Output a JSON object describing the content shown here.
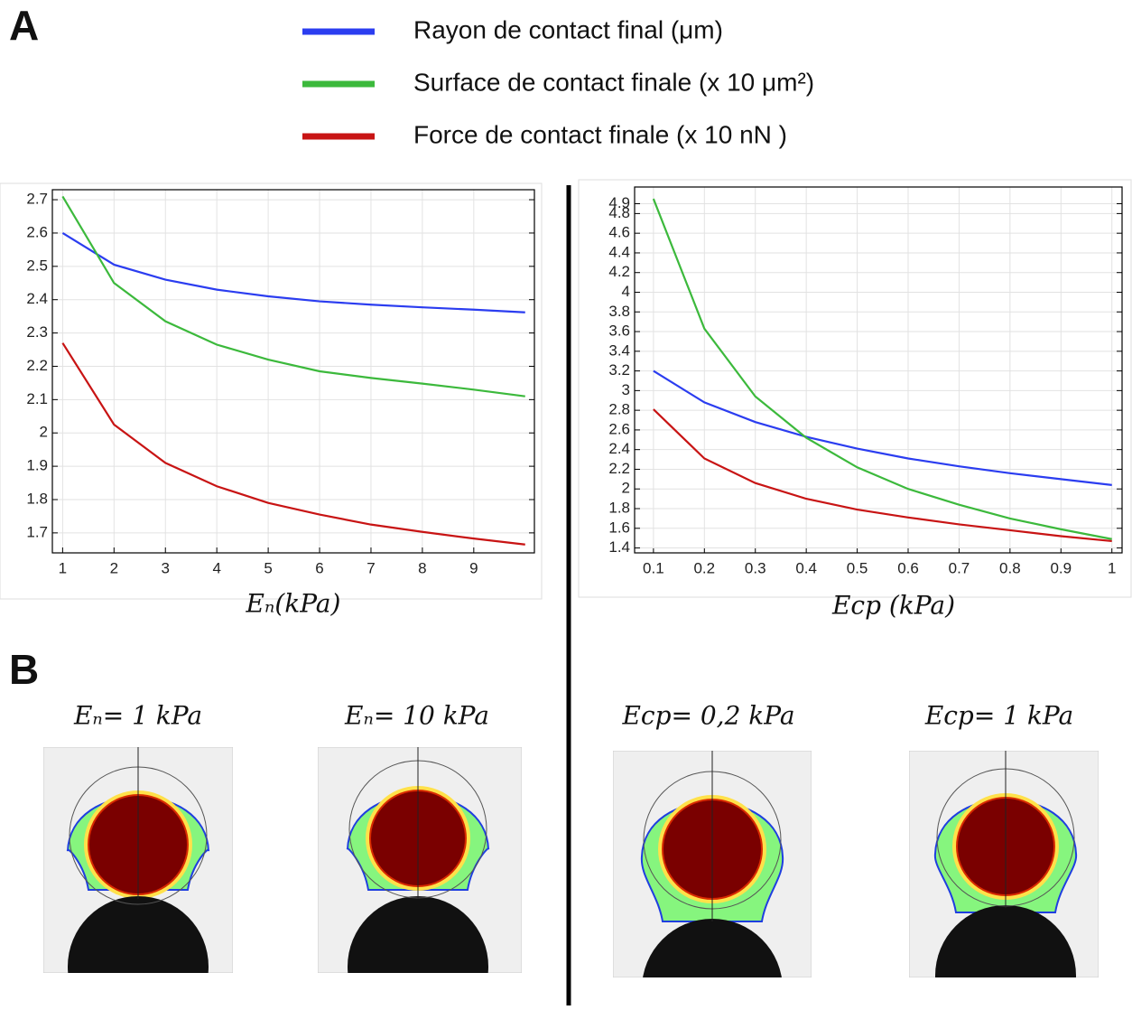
{
  "panels": [
    "A",
    "B"
  ],
  "chart_data": [
    {
      "type": "line",
      "xlabel": "Eₙ(kPa)",
      "grid": true,
      "x": [
        1,
        2,
        3,
        4,
        5,
        6,
        7,
        8,
        9,
        10
      ],
      "xlim": [
        0.8,
        10.18
      ],
      "xticks": [
        1,
        2,
        3,
        4,
        5,
        6,
        7,
        8,
        9
      ],
      "ylim": [
        1.64,
        2.73
      ],
      "yticks": [
        1.7,
        1.8,
        1.9,
        2,
        2.1,
        2.2,
        2.3,
        2.4,
        2.5,
        2.6,
        2.7
      ],
      "series": [
        {
          "name": "Rayon de contact final (μm)",
          "color": "#2b3df0",
          "values": [
            2.6,
            2.505,
            2.46,
            2.43,
            2.41,
            2.395,
            2.385,
            2.377,
            2.37,
            2.362
          ]
        },
        {
          "name": "Surface de contact  finale (x 10 μm²)",
          "color": "#3cb93c",
          "values": [
            2.71,
            2.45,
            2.335,
            2.265,
            2.22,
            2.185,
            2.165,
            2.148,
            2.13,
            2.11
          ]
        },
        {
          "name": "Force de contact finale (x 10 nN )",
          "color": "#c81414",
          "values": [
            2.27,
            2.025,
            1.91,
            1.84,
            1.79,
            1.755,
            1.725,
            1.703,
            1.683,
            1.665
          ]
        }
      ]
    },
    {
      "type": "line",
      "xlabel": "Ecp (kPa)",
      "grid": true,
      "x": [
        0.1,
        0.2,
        0.3,
        0.4,
        0.5,
        0.6,
        0.7,
        0.8,
        0.9,
        1
      ],
      "xlim": [
        0.063,
        1.02
      ],
      "xticks": [
        0.1,
        0.2,
        0.3,
        0.4,
        0.5,
        0.6,
        0.7,
        0.8,
        0.9,
        1
      ],
      "ylim": [
        1.35,
        5.07
      ],
      "yticks": [
        1.4,
        1.6,
        1.8,
        2,
        2.2,
        2.4,
        2.6,
        2.8,
        3,
        3.2,
        3.4,
        3.6,
        3.8,
        4,
        4.2,
        4.4,
        4.6,
        4.8,
        4.9
      ],
      "series": [
        {
          "color": "#2b3df0",
          "values": [
            3.2,
            2.88,
            2.68,
            2.53,
            2.41,
            2.31,
            2.23,
            2.16,
            2.1,
            2.04
          ]
        },
        {
          "color": "#3cb93c",
          "values": [
            4.95,
            3.63,
            2.94,
            2.52,
            2.22,
            2.0,
            1.84,
            1.7,
            1.59,
            1.49
          ]
        },
        {
          "color": "#c81414",
          "values": [
            2.81,
            2.31,
            2.06,
            1.9,
            1.79,
            1.71,
            1.64,
            1.58,
            1.52,
            1.47
          ]
        }
      ]
    }
  ],
  "images": [
    "Eₙ= 1 kPa",
    "Eₙ= 10 kPa",
    "Ecp= 0,2 kPa",
    "Ecp= 1 kPa"
  ]
}
